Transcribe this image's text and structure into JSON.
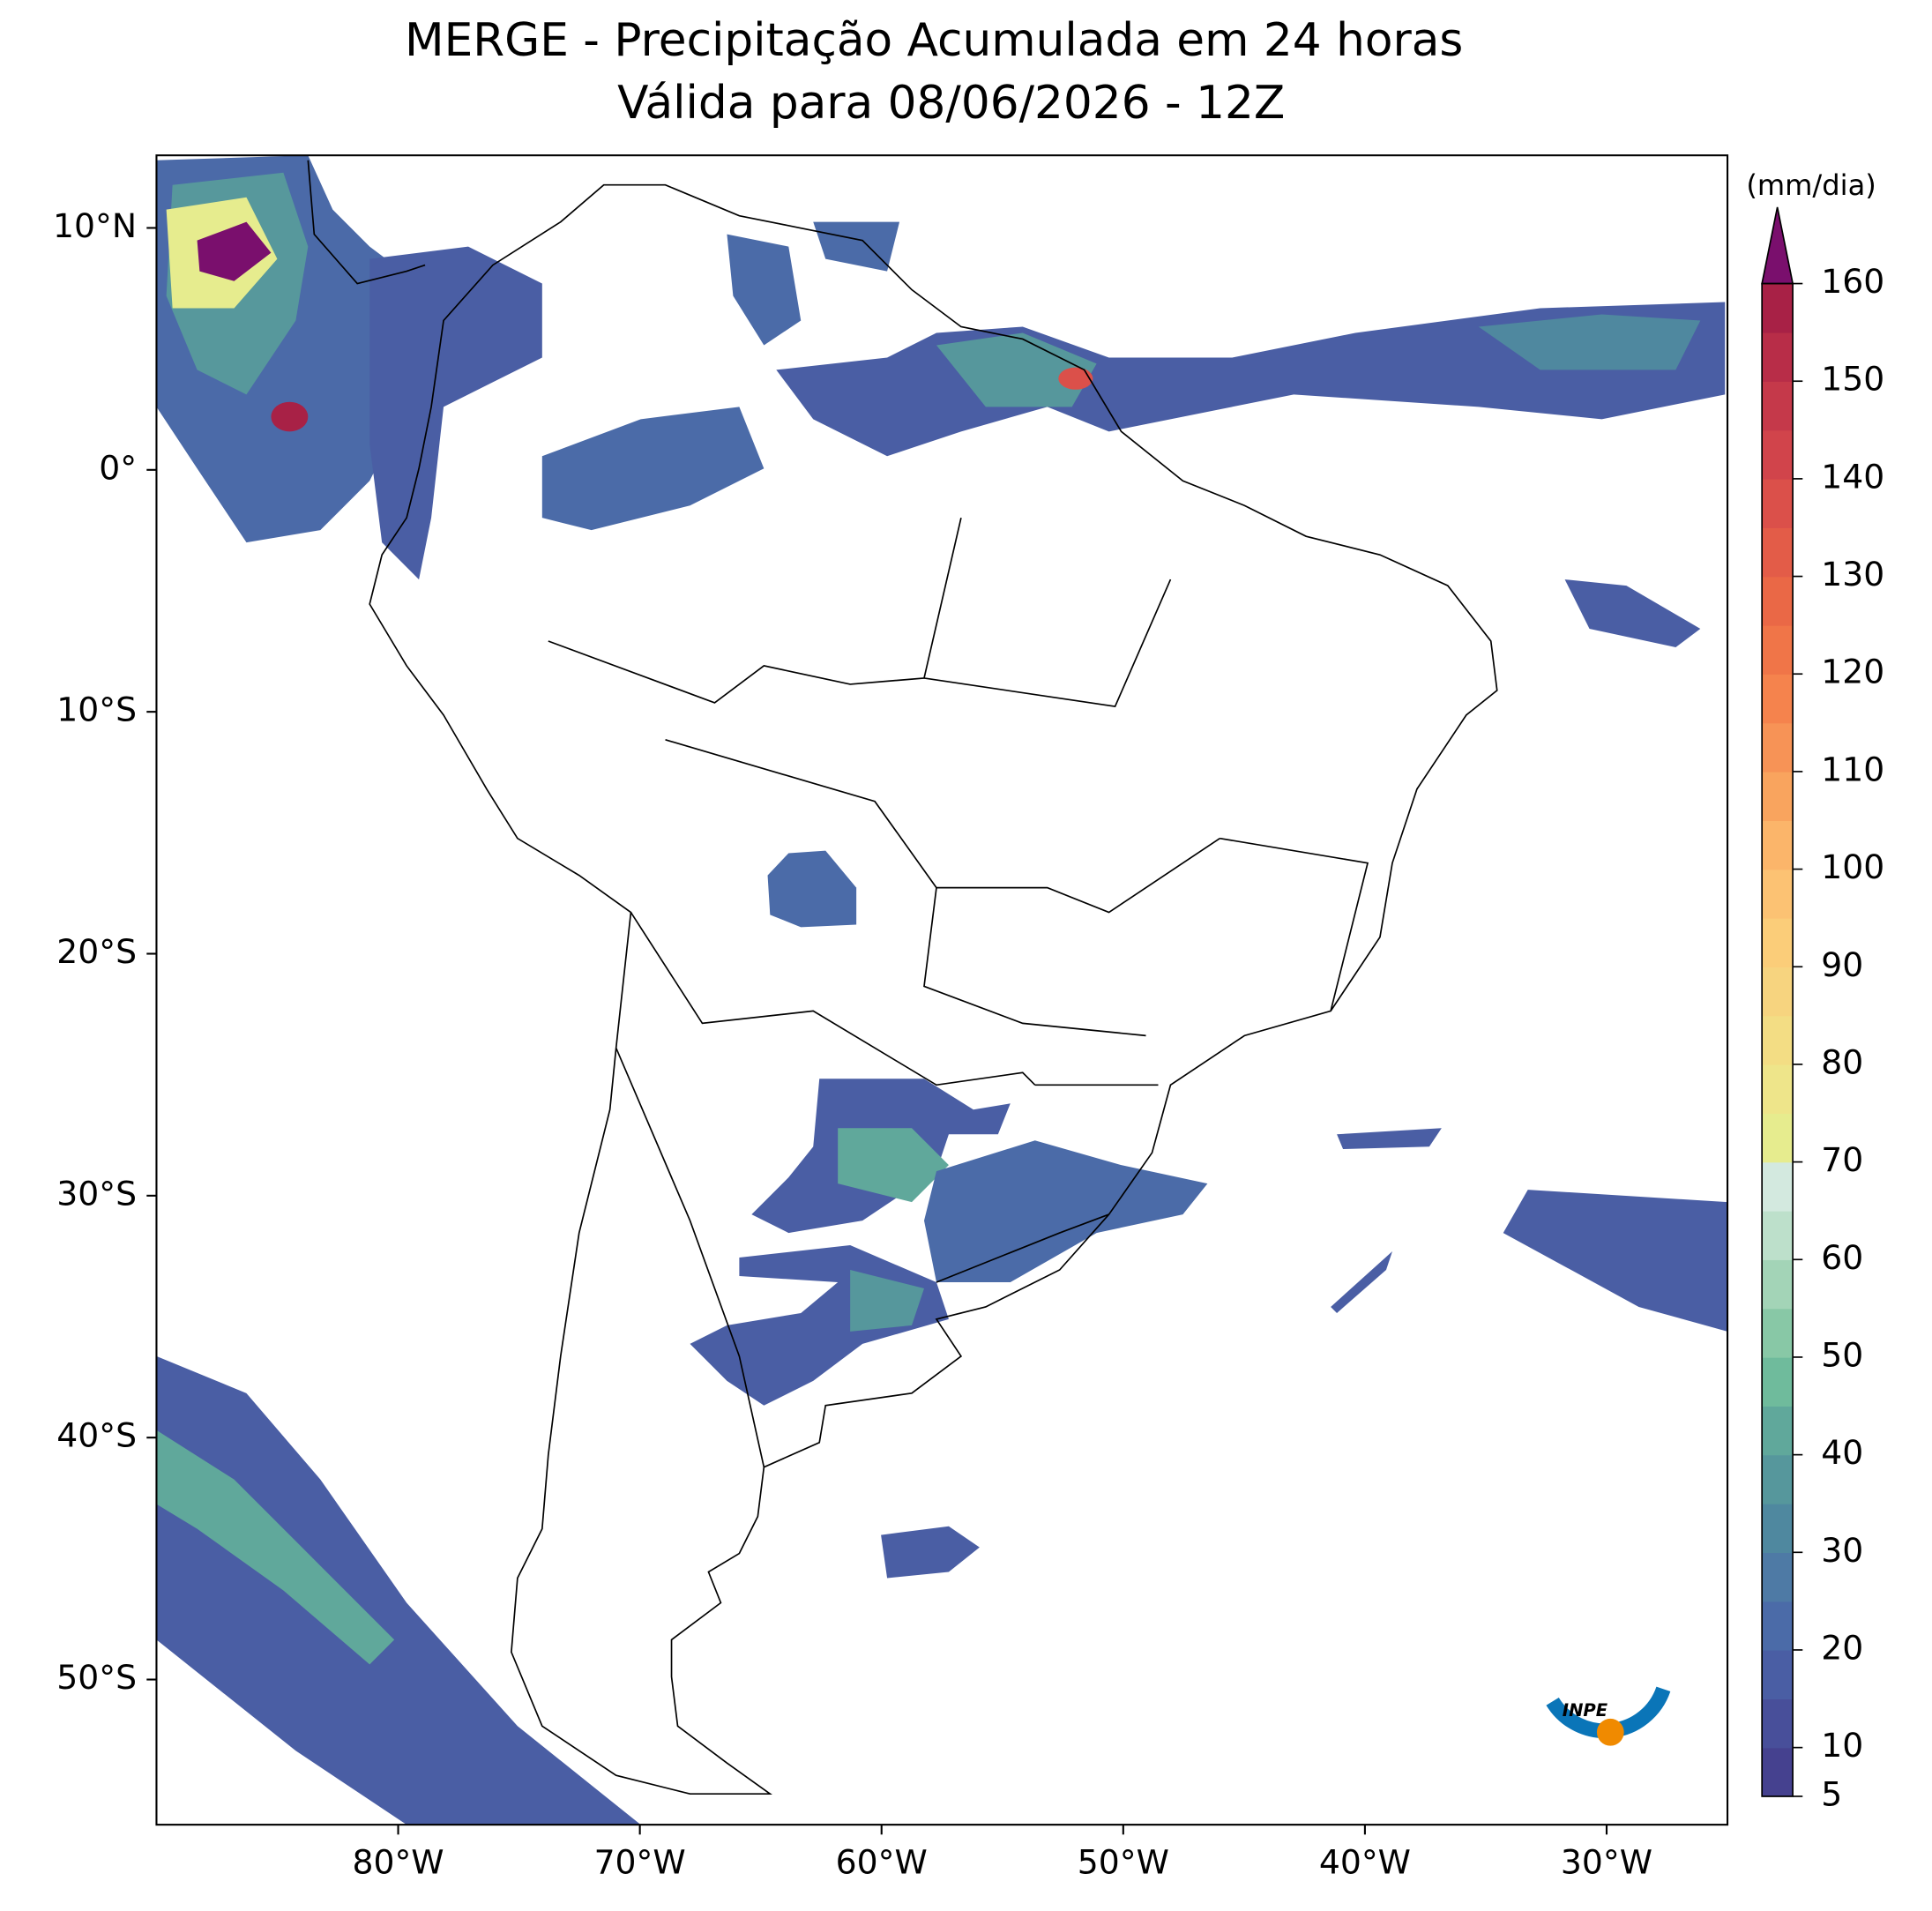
{
  "chart_data": {
    "type": "map",
    "title": "MERGE - Precipitação Acumulada em 24 horas",
    "subtitle": "Válida para 08/06/2026 - 12Z",
    "xlim": [
      -90,
      -25
    ],
    "ylim": [
      -56,
      13
    ],
    "xticks": [
      {
        "value": -80,
        "label": "80°W"
      },
      {
        "value": -70,
        "label": "70°W"
      },
      {
        "value": -60,
        "label": "60°W"
      },
      {
        "value": -50,
        "label": "50°W"
      },
      {
        "value": -40,
        "label": "40°W"
      },
      {
        "value": -30,
        "label": "30°W"
      }
    ],
    "yticks": [
      {
        "value": 10,
        "label": "10°N"
      },
      {
        "value": 0,
        "label": "0°"
      },
      {
        "value": -10,
        "label": "10°S"
      },
      {
        "value": -20,
        "label": "20°S"
      },
      {
        "value": -30,
        "label": "30°S"
      },
      {
        "value": -40,
        "label": "40°S"
      },
      {
        "value": -50,
        "label": "50°S"
      }
    ],
    "colorbar": {
      "label": "(mm/dia)",
      "levels": [
        5,
        10,
        15,
        20,
        25,
        30,
        35,
        40,
        45,
        50,
        55,
        60,
        65,
        70,
        75,
        80,
        85,
        90,
        95,
        100,
        105,
        110,
        115,
        120,
        125,
        130,
        135,
        140,
        145,
        150,
        155,
        160
      ],
      "colors": [
        "#45418f",
        "#484f9a",
        "#4a5ea4",
        "#4b6ba8",
        "#4e7aa5",
        "#4f889f",
        "#56979c",
        "#60a89b",
        "#6fbb9c",
        "#88c8a6",
        "#a3d4b7",
        "#bde0cb",
        "#d3e9df",
        "#e6ec8e",
        "#eee58a",
        "#f3dd84",
        "#f7d47f",
        "#fbcd79",
        "#fcc273",
        "#fbb56a",
        "#f9a45e",
        "#f79356",
        "#f5834d",
        "#f07548",
        "#ea6846",
        "#e35c48",
        "#db504a",
        "#d1444b",
        "#c5394a",
        "#b82d48",
        "#a82146"
      ],
      "extend_color": "#7a0f6d",
      "ticks": [
        5,
        10,
        20,
        30,
        40,
        50,
        60,
        70,
        80,
        90,
        100,
        110,
        120,
        130,
        140,
        150,
        160
      ]
    },
    "logo": "INPE"
  }
}
